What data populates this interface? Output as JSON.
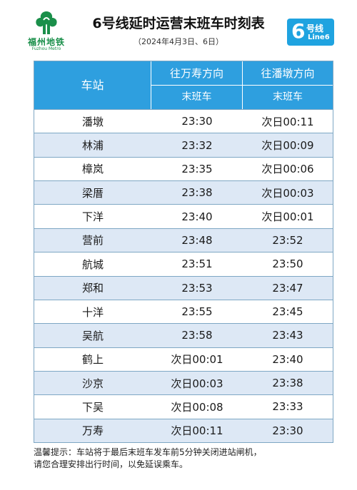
{
  "logo": {
    "cn": "福州地铁",
    "en": "Fuzhou Metro"
  },
  "title": "6号线延时运营末班车时刻表",
  "subtitle": "（2024年4月3日、6日）",
  "badge": {
    "number": "6",
    "cn": "号线",
    "en": "Line6",
    "color": "#1fa3e0"
  },
  "table": {
    "station_header": "车站",
    "dir1": "往万寿方向",
    "dir2": "往潘墩方向",
    "sub1": "末班车",
    "sub2": "末班车",
    "header_color": "#2e9fdf",
    "stripe_color": "#dde8f5",
    "rows": [
      {
        "station": "潘墩",
        "t1": "23:30",
        "t2": "次日00:11"
      },
      {
        "station": "林浦",
        "t1": "23:32",
        "t2": "次日00:09"
      },
      {
        "station": "樟岚",
        "t1": "23:35",
        "t2": "次日00:06"
      },
      {
        "station": "梁厝",
        "t1": "23:38",
        "t2": "次日00:03"
      },
      {
        "station": "下洋",
        "t1": "23:40",
        "t2": "次日00:01"
      },
      {
        "station": "营前",
        "t1": "23:48",
        "t2": "23:52"
      },
      {
        "station": "航城",
        "t1": "23:51",
        "t2": "23:50"
      },
      {
        "station": "郑和",
        "t1": "23:53",
        "t2": "23:47"
      },
      {
        "station": "十洋",
        "t1": "23:55",
        "t2": "23:45"
      },
      {
        "station": "吴航",
        "t1": "23:58",
        "t2": "23:43"
      },
      {
        "station": "鹤上",
        "t1": "次日00:01",
        "t2": "23:40"
      },
      {
        "station": "沙京",
        "t1": "次日00:03",
        "t2": "23:38"
      },
      {
        "station": "下吴",
        "t1": "次日00:08",
        "t2": "23:33"
      },
      {
        "station": "万寿",
        "t1": "次日00:11",
        "t2": "23:30"
      }
    ]
  },
  "note": {
    "line1": "温馨提示：车站将于最后末班车发车前5分钟关闭进站闸机，",
    "line2": "请您合理安排出行时间，以免延误乘车。"
  }
}
